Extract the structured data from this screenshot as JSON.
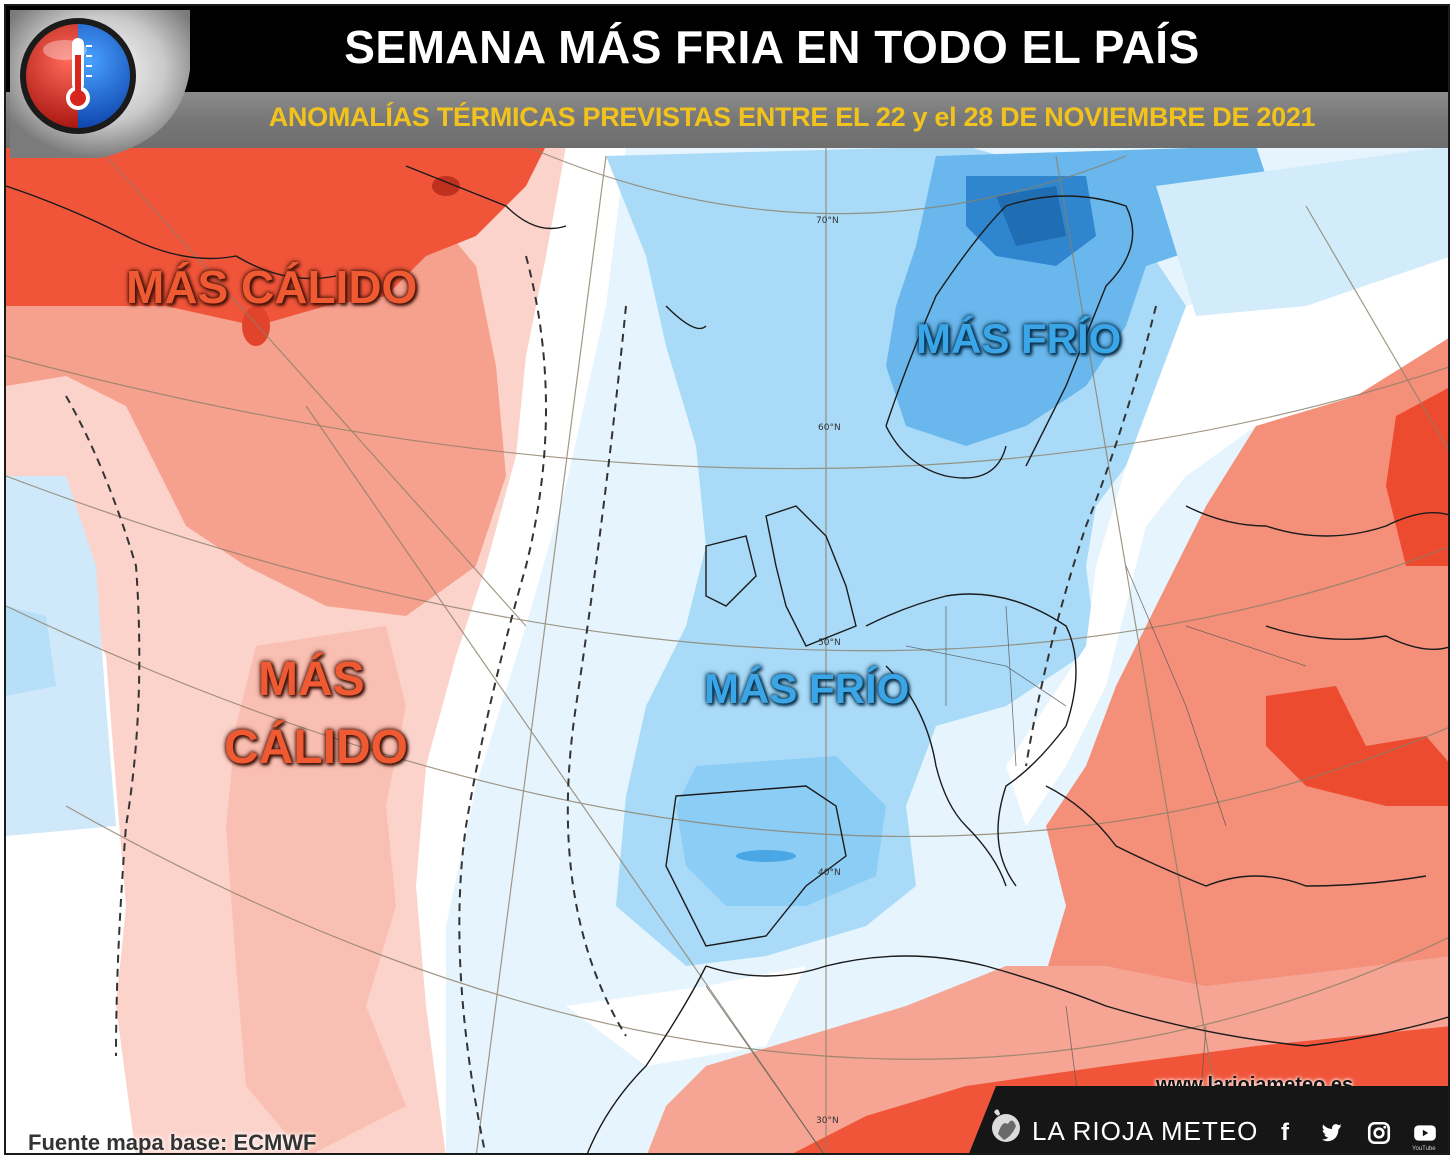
{
  "title": "SEMANA MÁS FRIA EN TODO EL PAÍS",
  "subtitle": "ANOMALÍAS TÉRMICAS PREVISTAS ENTRE EL 22 y el 28 DE NOVIEMBRE DE 2021",
  "labels": {
    "warm_north": "MÁS CÁLIDO",
    "warm_atlantic_1": "MÁS",
    "warm_atlantic_2": "CÁLIDO",
    "cold_scandinavia": "MÁS FRÍO",
    "cold_west_europe": "MÁS FRÍO"
  },
  "latitude_labels": [
    "70°N",
    "60°N",
    "50°N",
    "40°N",
    "30°N"
  ],
  "website": "www.lariojameteo.es",
  "source": "Fuente mapa base: ECMWF",
  "brand": "LA RIOJA METEO",
  "social_icons": [
    "facebook-icon",
    "twitter-icon",
    "instagram-icon",
    "youtube-icon"
  ],
  "youtube_caption": "YouTube",
  "colors": {
    "header_bg": "#000000",
    "subtitle_text": "#f2c31c",
    "warm_strong": "#f0553a",
    "warm_medium": "#f79b88",
    "warm_light": "#fcd6cf",
    "cold_light": "#d3ecfb",
    "cold_medium": "#9bd3f6",
    "cold_strong": "#3a96dc"
  }
}
